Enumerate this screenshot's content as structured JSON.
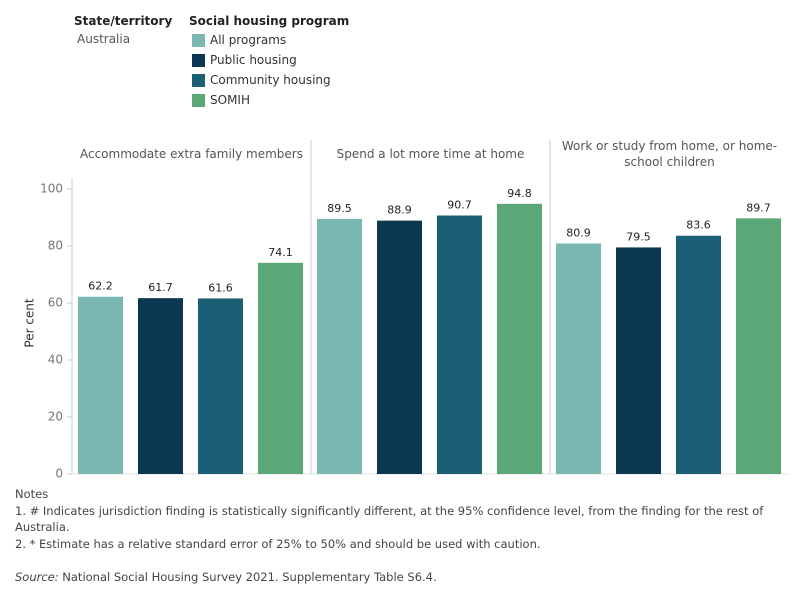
{
  "chart_data": {
    "type": "bar",
    "filter_title": "State/territory",
    "filter_value": "Australia",
    "legend_title": "Social housing program",
    "y_label": "Per cent",
    "categories": [
      "Accommodate extra family members",
      "Spend a lot more time at home",
      "Work or study from home, or home-school children"
    ],
    "series": [
      {
        "name": "All programs",
        "color": "#79b7b0",
        "values": [
          62.2,
          89.5,
          80.9
        ]
      },
      {
        "name": "Public housing",
        "color": "#0b3750",
        "values": [
          61.7,
          88.9,
          79.5
        ]
      },
      {
        "name": "Community housing",
        "color": "#1a5f74",
        "values": [
          61.6,
          90.7,
          83.6
        ]
      },
      {
        "name": "SOMIH",
        "color": "#5ba777",
        "values": [
          74.1,
          94.8,
          89.7
        ]
      }
    ],
    "ylim": [
      0,
      100
    ],
    "yticks": [
      0,
      20,
      40,
      60,
      80,
      100
    ],
    "grid": false,
    "notes_title": "Notes",
    "notes": [
      "1. # Indicates jurisdiction finding is statistically significantly different, at the 95% confidence level, from the finding for the rest of Australia.",
      "2. * Estimate has a relative standard error of 25% to 50% and should be used with caution."
    ],
    "source_label": "Source:",
    "source": "National Social Housing Survey 2021. Supplementary Table S6.4."
  }
}
